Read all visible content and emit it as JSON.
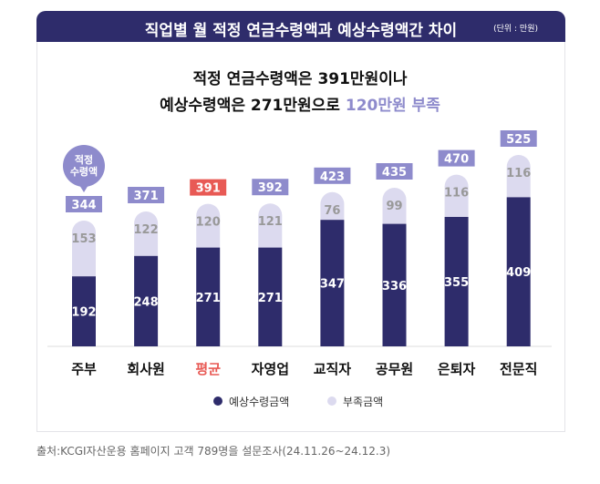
{
  "header": {
    "title": "직업별 월 적정 연금수령액과 예상수령액간 차이",
    "unit": "(단위 : 만원)"
  },
  "headline": {
    "line1": "적정 연금수령액은 391만원이나",
    "line2_prefix": "예상수령액은 271만원으로 ",
    "line2_highlight": "120만원 부족"
  },
  "bubble": "적정\n수령액",
  "chart_data": {
    "type": "bar",
    "stacked": true,
    "categories": [
      "주부",
      "회사원",
      "평균",
      "자영업",
      "교직자",
      "공무원",
      "은퇴자",
      "전문직"
    ],
    "highlight_category": "평균",
    "series": [
      {
        "name": "예상수령금액",
        "values": [
          192,
          248,
          271,
          271,
          347,
          336,
          355,
          409
        ],
        "color": "#2e2c6b"
      },
      {
        "name": "부족금액",
        "values": [
          153,
          122,
          120,
          121,
          76,
          99,
          116,
          116
        ],
        "color": "#dcdaef"
      }
    ],
    "totals": [
      344,
      371,
      391,
      392,
      423,
      435,
      470,
      525
    ],
    "legend_position": "bottom",
    "colors": {
      "total_label": "#8e8bcc",
      "highlight": "#e85a55"
    }
  },
  "footnote": "출처:KCGI자산운용 홈페이지 고객 789명을 설문조사(24.11.26~24.12.3)"
}
